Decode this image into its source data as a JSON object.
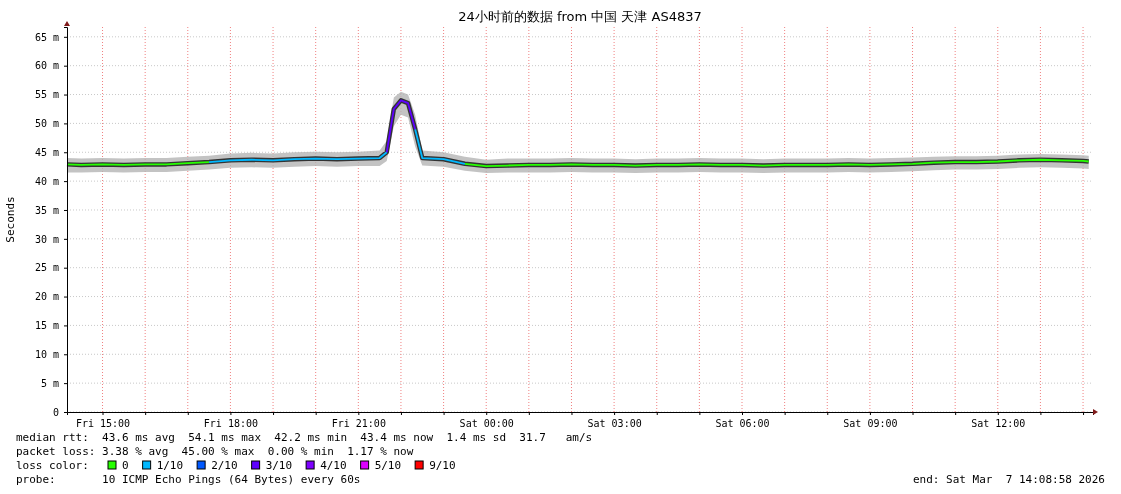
{
  "chart_data": {
    "type": "line",
    "title": "24小时前的数据 from 中国 天津 AS4837",
    "ylabel": "Seconds",
    "legend_title": "loss color:",
    "legend": "bottom",
    "grid": true,
    "xlim": [
      "2026-03-06T14:10",
      "2026-03-07T14:14"
    ],
    "xticks": [
      {
        "value": "2026-03-06T15:00",
        "label": "Fri 15:00"
      },
      {
        "value": "2026-03-06T16:00",
        "label": null
      },
      {
        "value": "2026-03-06T17:00",
        "label": null
      },
      {
        "value": "2026-03-06T18:00",
        "label": "Fri 18:00"
      },
      {
        "value": "2026-03-06T19:00",
        "label": null
      },
      {
        "value": "2026-03-06T20:00",
        "label": null
      },
      {
        "value": "2026-03-06T21:00",
        "label": "Fri 21:00"
      },
      {
        "value": "2026-03-06T22:00",
        "label": null
      },
      {
        "value": "2026-03-06T23:00",
        "label": null
      },
      {
        "value": "2026-03-07T00:00",
        "label": "Sat 00:00"
      },
      {
        "value": "2026-03-07T01:00",
        "label": null
      },
      {
        "value": "2026-03-07T02:00",
        "label": null
      },
      {
        "value": "2026-03-07T03:00",
        "label": "Sat 03:00"
      },
      {
        "value": "2026-03-07T04:00",
        "label": null
      },
      {
        "value": "2026-03-07T05:00",
        "label": null
      },
      {
        "value": "2026-03-07T06:00",
        "label": "Sat 06:00"
      },
      {
        "value": "2026-03-07T07:00",
        "label": null
      },
      {
        "value": "2026-03-07T08:00",
        "label": null
      },
      {
        "value": "2026-03-07T09:00",
        "label": "Sat 09:00"
      },
      {
        "value": "2026-03-07T10:00",
        "label": null
      },
      {
        "value": "2026-03-07T11:00",
        "label": null
      },
      {
        "value": "2026-03-07T12:00",
        "label": "Sat 12:00"
      },
      {
        "value": "2026-03-07T13:00",
        "label": null
      },
      {
        "value": "2026-03-07T14:00",
        "label": null
      }
    ],
    "ylim": [
      0,
      66.7
    ],
    "yticks": [
      0,
      {
        "value": 5,
        "label": "5 m"
      },
      {
        "value": 10,
        "label": "10 m"
      },
      {
        "value": 15,
        "label": "15 m"
      },
      {
        "value": 20,
        "label": "20 m"
      },
      {
        "value": 25,
        "label": "25 m"
      },
      {
        "value": 30,
        "label": "30 m"
      },
      {
        "value": 35,
        "label": "35 m"
      },
      {
        "value": 40,
        "label": "40 m"
      },
      {
        "value": 45,
        "label": "45 m"
      },
      {
        "value": 50,
        "label": "50 m"
      },
      {
        "value": 55,
        "label": "55 m"
      },
      {
        "value": 60,
        "label": "60 m"
      },
      {
        "value": 65,
        "label": "65 m"
      }
    ],
    "x": [
      "2026-03-06T14:10",
      "2026-03-06T14:30",
      "2026-03-06T15:00",
      "2026-03-06T15:30",
      "2026-03-06T16:00",
      "2026-03-06T16:30",
      "2026-03-06T17:00",
      "2026-03-06T17:30",
      "2026-03-06T18:00",
      "2026-03-06T18:30",
      "2026-03-06T19:00",
      "2026-03-06T19:30",
      "2026-03-06T20:00",
      "2026-03-06T20:30",
      "2026-03-06T21:00",
      "2026-03-06T21:30",
      "2026-03-06T21:40",
      "2026-03-06T21:50",
      "2026-03-06T22:00",
      "2026-03-06T22:10",
      "2026-03-06T22:20",
      "2026-03-06T22:30",
      "2026-03-06T23:00",
      "2026-03-06T23:30",
      "2026-03-07T00:00",
      "2026-03-07T00:30",
      "2026-03-07T01:00",
      "2026-03-07T01:30",
      "2026-03-07T02:00",
      "2026-03-07T02:30",
      "2026-03-07T03:00",
      "2026-03-07T03:30",
      "2026-03-07T04:00",
      "2026-03-07T04:30",
      "2026-03-07T05:00",
      "2026-03-07T05:30",
      "2026-03-07T06:00",
      "2026-03-07T06:30",
      "2026-03-07T07:00",
      "2026-03-07T07:30",
      "2026-03-07T08:00",
      "2026-03-07T08:30",
      "2026-03-07T09:00",
      "2026-03-07T09:30",
      "2026-03-07T10:00",
      "2026-03-07T10:30",
      "2026-03-07T11:00",
      "2026-03-07T11:30",
      "2026-03-07T12:00",
      "2026-03-07T12:30",
      "2026-03-07T13:00",
      "2026-03-07T13:30",
      "2026-03-07T14:00",
      "2026-03-07T14:08"
    ],
    "series": [
      {
        "color": "#333333",
        "values": [
          42.9,
          42.8,
          42.9,
          42.8,
          42.9,
          42.9,
          43.1,
          43.3,
          43.6,
          43.7,
          43.6,
          43.8,
          43.9,
          43.8,
          43.9,
          44.0,
          45.0,
          52.5,
          54.0,
          53.5,
          49.0,
          44.0,
          43.8,
          43.0,
          42.6,
          42.7,
          42.8,
          42.8,
          42.9,
          42.8,
          42.8,
          42.7,
          42.8,
          42.8,
          42.9,
          42.8,
          42.8,
          42.7,
          42.8,
          42.8,
          42.8,
          42.9,
          42.8,
          42.9,
          43.0,
          43.2,
          43.3,
          43.3,
          43.4,
          43.6,
          43.7,
          43.6,
          43.5,
          43.4
        ],
        "lower": [
          41.5,
          41.5,
          41.6,
          41.5,
          41.6,
          41.6,
          41.8,
          42.0,
          42.3,
          42.4,
          42.3,
          42.5,
          42.6,
          42.5,
          42.6,
          42.6,
          43.5,
          49.5,
          51.5,
          51.0,
          46.0,
          42.7,
          42.5,
          41.8,
          41.4,
          41.5,
          41.5,
          41.5,
          41.6,
          41.5,
          41.5,
          41.4,
          41.5,
          41.5,
          41.6,
          41.5,
          41.5,
          41.4,
          41.5,
          41.5,
          41.5,
          41.6,
          41.5,
          41.6,
          41.7,
          41.9,
          42.0,
          42.0,
          42.1,
          42.3,
          42.4,
          42.3,
          42.2,
          42.1
        ],
        "upper": [
          44.0,
          43.9,
          44.0,
          43.9,
          44.0,
          44.0,
          44.2,
          44.4,
          44.8,
          44.9,
          44.8,
          45.0,
          45.1,
          45.0,
          45.1,
          45.3,
          47.0,
          54.5,
          55.5,
          55.0,
          51.5,
          45.3,
          45.0,
          44.2,
          43.7,
          43.9,
          43.9,
          43.9,
          44.0,
          43.9,
          43.9,
          43.8,
          43.9,
          43.9,
          44.0,
          43.9,
          43.9,
          43.8,
          43.9,
          43.9,
          43.9,
          44.0,
          43.9,
          44.0,
          44.1,
          44.2,
          44.3,
          44.3,
          44.4,
          44.6,
          44.7,
          44.6,
          44.5,
          44.4
        ]
      },
      {
        "name": "0",
        "color": "#26ff00",
        "values": [
          42.9,
          42.8,
          42.9,
          42.8,
          42.9,
          42.9,
          43.1,
          43.3,
          null,
          null,
          null,
          null,
          null,
          null,
          null,
          null,
          null,
          null,
          null,
          null,
          null,
          null,
          null,
          43.0,
          42.6,
          42.7,
          42.8,
          42.8,
          42.9,
          42.8,
          42.8,
          42.7,
          42.8,
          42.8,
          42.9,
          42.8,
          42.8,
          42.7,
          42.8,
          42.8,
          42.8,
          42.9,
          42.8,
          42.9,
          43.0,
          43.2,
          43.3,
          43.3,
          43.4,
          43.6,
          43.7,
          43.6,
          43.5,
          43.4
        ]
      },
      {
        "name": "1/10",
        "color": "#00b8ff",
        "values": [
          null,
          null,
          null,
          null,
          null,
          null,
          null,
          43.3,
          43.6,
          43.7,
          43.6,
          43.8,
          43.9,
          43.8,
          43.9,
          44.0,
          45.0,
          null,
          null,
          null,
          49.0,
          44.0,
          43.8,
          43.0,
          null,
          null,
          null,
          null,
          null,
          null,
          null,
          null,
          null,
          null,
          null,
          null,
          null,
          null,
          null,
          null,
          null,
          null,
          null,
          null,
          null,
          null,
          null,
          null,
          null,
          null,
          null,
          null,
          null,
          null
        ]
      },
      {
        "name": "2/10",
        "color": "#0059ff",
        "values": [
          null,
          null,
          null,
          null,
          null,
          null,
          null,
          null,
          null,
          null,
          null,
          null,
          null,
          null,
          null,
          null,
          null,
          null,
          null,
          null,
          null,
          null,
          null,
          null,
          null,
          null,
          null,
          null,
          null,
          null,
          null,
          null,
          null,
          null,
          null,
          null,
          null,
          null,
          null,
          null,
          null,
          null,
          null,
          null,
          null,
          null,
          null,
          null,
          null,
          null,
          null,
          null,
          null,
          null
        ]
      },
      {
        "name": "3/10",
        "color": "#5e00ff",
        "values": [
          null,
          null,
          null,
          null,
          null,
          null,
          null,
          null,
          null,
          null,
          null,
          null,
          null,
          null,
          null,
          null,
          45.0,
          52.5,
          54.0,
          53.5,
          49.0,
          null,
          null,
          null,
          null,
          null,
          null,
          null,
          null,
          null,
          null,
          null,
          null,
          null,
          null,
          null,
          null,
          null,
          null,
          null,
          null,
          null,
          null,
          null,
          null,
          null,
          null,
          null,
          null,
          null,
          null,
          null,
          null,
          null
        ]
      },
      {
        "name": "4/10",
        "color": "#7e00ff",
        "values": [
          null,
          null,
          null,
          null,
          null,
          null,
          null,
          null,
          null,
          null,
          null,
          null,
          null,
          null,
          null,
          null,
          null,
          null,
          null,
          null,
          null,
          null,
          null,
          null,
          null,
          null,
          null,
          null,
          null,
          null,
          null,
          null,
          null,
          null,
          null,
          null,
          null,
          null,
          null,
          null,
          null,
          null,
          null,
          null,
          null,
          null,
          null,
          null,
          null,
          null,
          null,
          null,
          null,
          null
        ]
      },
      {
        "name": "5/10",
        "color": "#dd00ff",
        "values": [
          null,
          null,
          null,
          null,
          null,
          null,
          null,
          null,
          null,
          null,
          null,
          null,
          null,
          null,
          null,
          null,
          null,
          null,
          null,
          null,
          null,
          null,
          null,
          null,
          null,
          null,
          null,
          null,
          null,
          null,
          null,
          null,
          null,
          null,
          null,
          null,
          null,
          null,
          null,
          null,
          null,
          null,
          null,
          null,
          null,
          null,
          null,
          null,
          null,
          null,
          null,
          null,
          null,
          null
        ]
      },
      {
        "name": "9/10",
        "color": "#ff0000",
        "values": [
          null,
          null,
          null,
          null,
          null,
          null,
          null,
          null,
          null,
          null,
          null,
          null,
          null,
          null,
          null,
          null,
          null,
          null,
          null,
          null,
          null,
          null,
          null,
          null,
          null,
          null,
          null,
          null,
          null,
          null,
          null,
          null,
          null,
          null,
          null,
          null,
          null,
          null,
          null,
          null,
          null,
          null,
          null,
          null,
          null,
          null,
          null,
          null,
          null,
          null,
          null,
          null,
          null,
          null
        ]
      }
    ],
    "annotations": [
      "median rtt:  43.6 ms avg  54.1 ms max  42.2 ms min  43.4 ms now  1.4 ms sd  31.7   am/s",
      "packet loss: 3.38 % avg  45.00 % max  0.00 % min  1.17 % now",
      "probe:       10 ICMP Echo Pings (64 Bytes) every 60s",
      "end: Sat Mar  7 14:08:58 2026"
    ]
  }
}
